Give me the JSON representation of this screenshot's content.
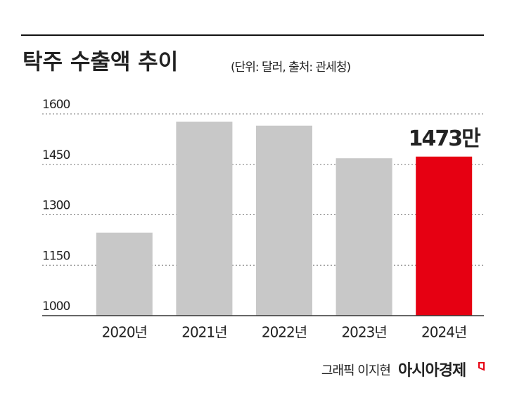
{
  "chart_data": {
    "type": "bar",
    "title": "탁주 수출액 추이",
    "subtitle": "(단위: 달러, 출처: 관세청)",
    "categories": [
      "2020년",
      "2021년",
      "2022년",
      "2023년",
      "2024년"
    ],
    "values": [
      1247,
      1577,
      1565,
      1468,
      1473
    ],
    "value_labels": [
      null,
      null,
      null,
      null,
      "1473만"
    ],
    "colors": [
      "#c8c8c8",
      "#c8c8c8",
      "#c8c8c8",
      "#c8c8c8",
      "#e60012"
    ],
    "ylim": [
      1000,
      1600
    ],
    "yticks": [
      1000,
      1150,
      1300,
      1450,
      1600
    ],
    "grid": true
  },
  "footer": {
    "credit": "그래픽 이지현",
    "brand": "아시아경제"
  }
}
